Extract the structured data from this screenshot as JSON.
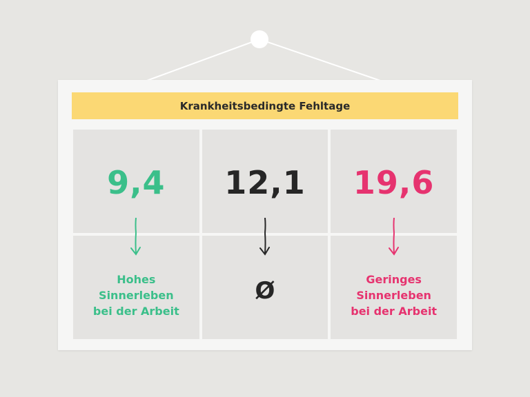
{
  "title": "Krankheitsbedingte Fehltage",
  "columns": [
    {
      "value": "9,4",
      "color": "#3bbf8a",
      "label_lines": [
        "Hohes",
        "Sinnerleben",
        "bei der Arbeit"
      ]
    },
    {
      "value": "12,1",
      "color": "#262626",
      "symbol": "Ø"
    },
    {
      "value": "19,6",
      "color": "#e6336f",
      "label_lines": [
        "Geringes",
        "Sinnerleben",
        "bei der Arbeit"
      ]
    }
  ],
  "icons": [
    "hanger-nail-icon",
    "arrow-down-icon",
    "average-icon"
  ]
}
